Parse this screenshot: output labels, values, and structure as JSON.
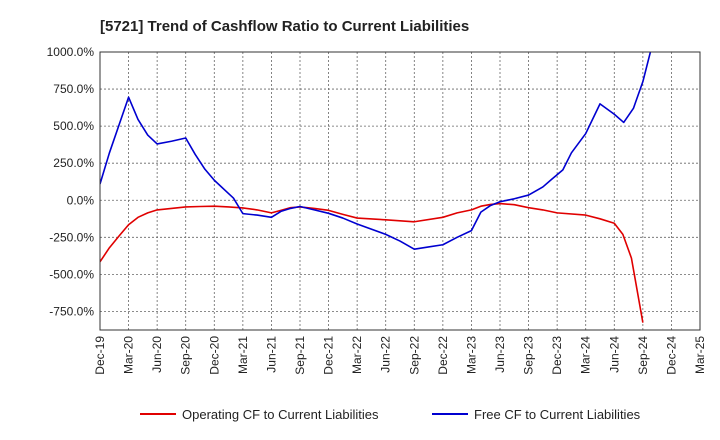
{
  "chart_data": {
    "type": "line",
    "title": "[5721]  Trend of Cashflow Ratio to Current Liabilities",
    "xlabel": "",
    "ylabel": "",
    "ylim": [
      -875,
      1000
    ],
    "y_ticks": [
      1000,
      750,
      500,
      250,
      0,
      -250,
      -500,
      -750
    ],
    "y_tick_labels": [
      "1000.0%",
      "750.0%",
      "500.0%",
      "250.0%",
      "0.0%",
      "-250.0%",
      "-500.0%",
      "-750.0%"
    ],
    "x_tick_labels": [
      "Dec-19",
      "Mar-20",
      "Jun-20",
      "Sep-20",
      "Dec-20",
      "Mar-21",
      "Jun-21",
      "Sep-21",
      "Dec-21",
      "Mar-22",
      "Jun-22",
      "Sep-22",
      "Dec-22",
      "Mar-23",
      "Jun-23",
      "Sep-23",
      "Dec-23",
      "Mar-24",
      "Jun-24",
      "Sep-24",
      "Dec-24",
      "Mar-25"
    ],
    "grid": true,
    "legend_position": "bottom",
    "series": [
      {
        "name": "Operating CF to Current Liabilities",
        "color": "#e00000",
        "points": [
          [
            0,
            -415
          ],
          [
            0.33,
            -320
          ],
          [
            0.67,
            -240
          ],
          [
            1,
            -165
          ],
          [
            1.33,
            -115
          ],
          [
            1.67,
            -85
          ],
          [
            2,
            -65
          ],
          [
            2.5,
            -55
          ],
          [
            3,
            -45
          ],
          [
            3.5,
            -42
          ],
          [
            4,
            -40
          ],
          [
            4.5,
            -45
          ],
          [
            5,
            -52
          ],
          [
            5.5,
            -65
          ],
          [
            6,
            -85
          ],
          [
            6.33,
            -68
          ],
          [
            6.67,
            -50
          ],
          [
            7,
            -45
          ],
          [
            7.5,
            -55
          ],
          [
            8,
            -68
          ],
          [
            8.5,
            -95
          ],
          [
            9,
            -120
          ],
          [
            10,
            -132
          ],
          [
            11,
            -145
          ],
          [
            12,
            -115
          ],
          [
            12.5,
            -85
          ],
          [
            13,
            -65
          ],
          [
            13.33,
            -40
          ],
          [
            13.67,
            -28
          ],
          [
            14,
            -22
          ],
          [
            14.5,
            -30
          ],
          [
            15,
            -50
          ],
          [
            15.5,
            -65
          ],
          [
            16,
            -85
          ],
          [
            17,
            -100
          ],
          [
            17.5,
            -125
          ],
          [
            18,
            -155
          ],
          [
            18.3,
            -230
          ],
          [
            18.6,
            -390
          ],
          [
            19,
            -825
          ]
        ]
      },
      {
        "name": "Free CF to Current Liabilities",
        "color": "#0000d0",
        "points": [
          [
            0,
            110
          ],
          [
            0.33,
            320
          ],
          [
            0.67,
            510
          ],
          [
            1,
            695
          ],
          [
            1.33,
            545
          ],
          [
            1.67,
            440
          ],
          [
            2,
            380
          ],
          [
            2.5,
            398
          ],
          [
            3,
            420
          ],
          [
            3.33,
            310
          ],
          [
            3.67,
            210
          ],
          [
            4,
            135
          ],
          [
            4.5,
            45
          ],
          [
            4.67,
            15
          ],
          [
            5,
            -90
          ],
          [
            5.5,
            -100
          ],
          [
            6,
            -115
          ],
          [
            6.33,
            -75
          ],
          [
            6.67,
            -55
          ],
          [
            7,
            -42
          ],
          [
            7.5,
            -65
          ],
          [
            8,
            -88
          ],
          [
            8.5,
            -120
          ],
          [
            9,
            -160
          ],
          [
            10,
            -230
          ],
          [
            10.5,
            -275
          ],
          [
            11,
            -330
          ],
          [
            11.5,
            -315
          ],
          [
            12,
            -300
          ],
          [
            12.5,
            -250
          ],
          [
            13,
            -205
          ],
          [
            13.33,
            -80
          ],
          [
            13.67,
            -35
          ],
          [
            14,
            -10
          ],
          [
            14.5,
            10
          ],
          [
            15,
            35
          ],
          [
            15.5,
            90
          ],
          [
            15.8,
            140
          ],
          [
            16.2,
            205
          ],
          [
            16.5,
            320
          ],
          [
            17,
            450
          ],
          [
            17.5,
            650
          ],
          [
            18,
            580
          ],
          [
            18.33,
            525
          ],
          [
            18.67,
            620
          ],
          [
            19,
            800
          ],
          [
            19.33,
            1050
          ]
        ]
      }
    ]
  }
}
